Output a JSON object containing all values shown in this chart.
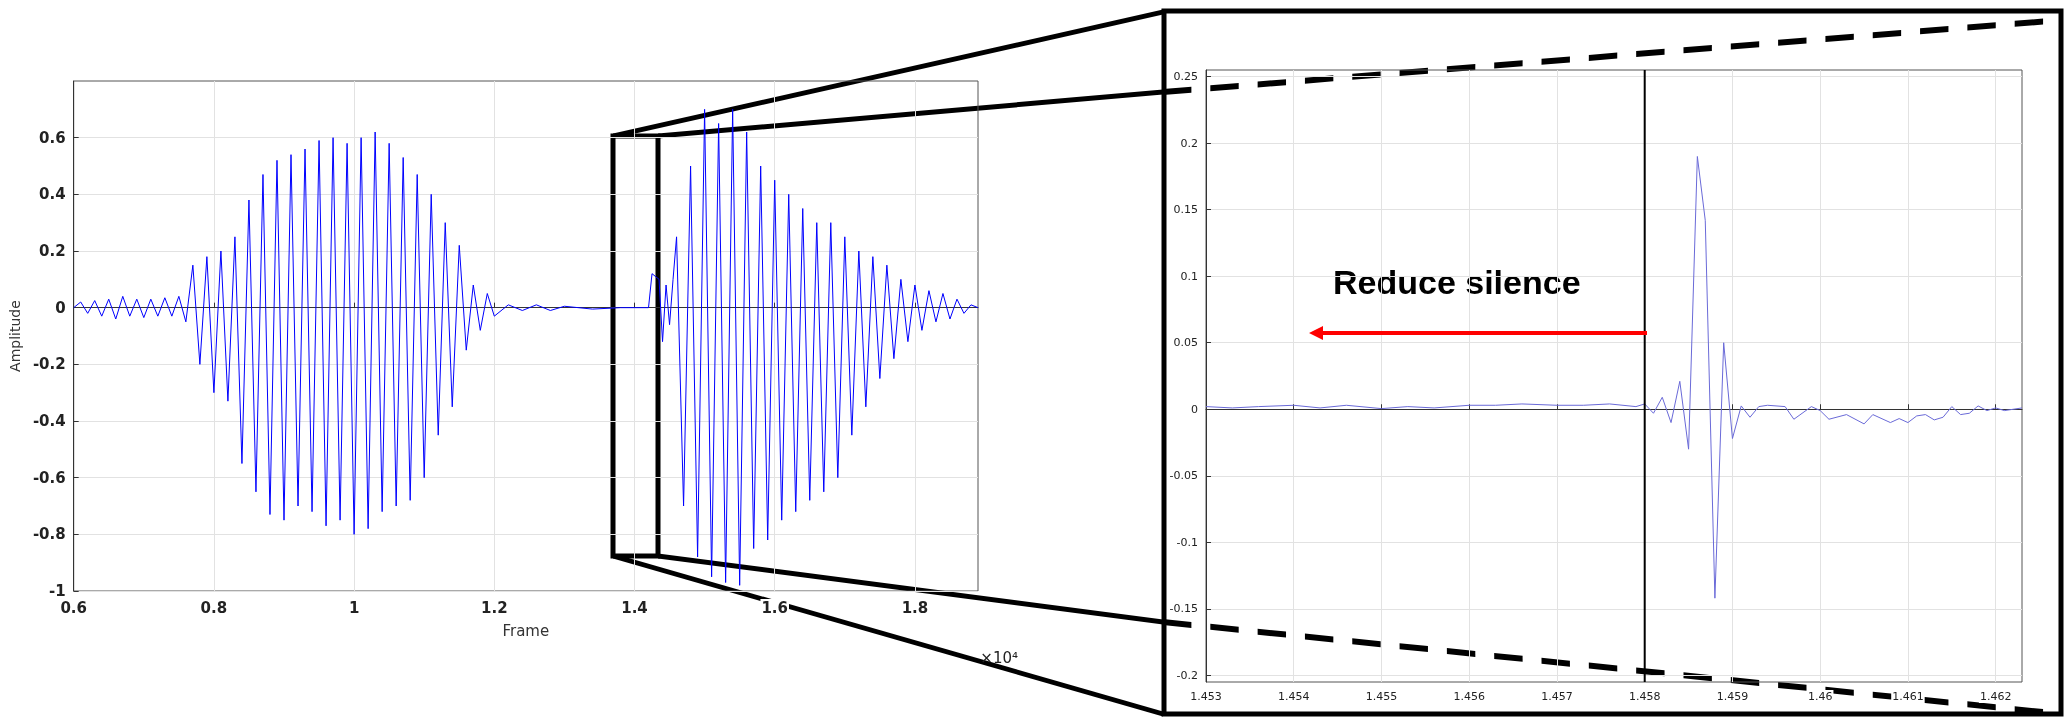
{
  "chart_data": [
    {
      "type": "line",
      "xlabel": "Frame",
      "ylabel": "Amplitude",
      "annotations": [
        "×10⁴"
      ],
      "xlim": [
        0.6,
        1.89
      ],
      "ylim": [
        -1,
        0.8
      ],
      "xticks": [
        0.6,
        0.8,
        1,
        1.2,
        1.4,
        1.6,
        1.8
      ],
      "yticks": [
        -1,
        -0.8,
        -0.6,
        -0.4,
        -0.2,
        0,
        0.2,
        0.4,
        0.6
      ],
      "grid": true,
      "series": [
        {
          "color": "#0000ff",
          "x": [
            0.6,
            0.61,
            0.62,
            0.63,
            0.64,
            0.65,
            0.66,
            0.67,
            0.68,
            0.69,
            0.7,
            0.71,
            0.72,
            0.73,
            0.74,
            0.75,
            0.76,
            0.77,
            0.78,
            0.79,
            0.8,
            0.81,
            0.82,
            0.83,
            0.84,
            0.85,
            0.86,
            0.87,
            0.88,
            0.89,
            0.9,
            0.91,
            0.92,
            0.93,
            0.94,
            0.95,
            0.96,
            0.97,
            0.98,
            0.99,
            1.0,
            1.01,
            1.02,
            1.03,
            1.04,
            1.05,
            1.06,
            1.07,
            1.08,
            1.09,
            1.1,
            1.11,
            1.12,
            1.13,
            1.14,
            1.15,
            1.16,
            1.17,
            1.18,
            1.19,
            1.2,
            1.22,
            1.24,
            1.26,
            1.28,
            1.3,
            1.34,
            1.38,
            1.42,
            1.425,
            1.435,
            1.44,
            1.445,
            1.45,
            1.455,
            1.46,
            1.47,
            1.48,
            1.49,
            1.5,
            1.51,
            1.52,
            1.53,
            1.54,
            1.55,
            1.56,
            1.57,
            1.58,
            1.59,
            1.6,
            1.61,
            1.62,
            1.63,
            1.64,
            1.65,
            1.66,
            1.67,
            1.68,
            1.69,
            1.7,
            1.71,
            1.72,
            1.73,
            1.74,
            1.75,
            1.76,
            1.77,
            1.78,
            1.79,
            1.8,
            1.81,
            1.82,
            1.83,
            1.84,
            1.85,
            1.86,
            1.87,
            1.88,
            1.89
          ],
          "values": [
            0,
            0.02,
            -0.02,
            0.025,
            -0.03,
            0.03,
            -0.04,
            0.04,
            -0.03,
            0.03,
            -0.035,
            0.03,
            -0.03,
            0.035,
            -0.03,
            0.04,
            -0.05,
            0.15,
            -0.2,
            0.18,
            -0.3,
            0.2,
            -0.33,
            0.25,
            -0.55,
            0.38,
            -0.65,
            0.47,
            -0.73,
            0.52,
            -0.75,
            0.54,
            -0.7,
            0.56,
            -0.72,
            0.59,
            -0.77,
            0.6,
            -0.75,
            0.58,
            -0.8,
            0.6,
            -0.78,
            0.62,
            -0.72,
            0.58,
            -0.7,
            0.53,
            -0.68,
            0.47,
            -0.6,
            0.4,
            -0.45,
            0.3,
            -0.35,
            0.22,
            -0.15,
            0.08,
            -0.08,
            0.05,
            -0.03,
            0.01,
            -0.01,
            0.01,
            -0.01,
            0.005,
            -0.005,
            0,
            0,
            0.12,
            0.1,
            -0.12,
            0.08,
            -0.06,
            0.1,
            0.25,
            -0.7,
            0.5,
            -0.88,
            0.7,
            -0.95,
            0.65,
            -0.97,
            0.7,
            -0.98,
            0.62,
            -0.85,
            0.5,
            -0.82,
            0.45,
            -0.75,
            0.4,
            -0.72,
            0.35,
            -0.68,
            0.3,
            -0.65,
            0.3,
            -0.6,
            0.25,
            -0.45,
            0.2,
            -0.35,
            0.18,
            -0.25,
            0.15,
            -0.18,
            0.1,
            -0.12,
            0.08,
            -0.08,
            0.06,
            -0.05,
            0.05,
            -0.04,
            0.03,
            -0.02,
            0.01,
            0
          ]
        }
      ]
    },
    {
      "type": "line",
      "annotations": [
        "Reduce silence"
      ],
      "xlim": [
        1.453,
        1.4623
      ],
      "ylim": [
        -0.205,
        0.255
      ],
      "xticks": [
        1.453,
        1.454,
        1.455,
        1.456,
        1.457,
        1.458,
        1.459,
        1.46,
        1.461,
        1.462
      ],
      "yticks": [
        -0.2,
        -0.15,
        -0.1,
        -0.05,
        0,
        0.05,
        0.1,
        0.15,
        0.2,
        0.25
      ],
      "grid": true,
      "ref_lines": [
        {
          "axis": "x",
          "value": 1.458,
          "color": "#000000"
        }
      ],
      "series": [
        {
          "color": "#6a6ad8",
          "x": [
            1.453,
            1.4533,
            1.4536,
            1.454,
            1.4543,
            1.4546,
            1.455,
            1.4553,
            1.4556,
            1.456,
            1.4563,
            1.4566,
            1.457,
            1.4573,
            1.4576,
            1.4579,
            1.458,
            1.4581,
            1.4582,
            1.4583,
            1.4584,
            1.4585,
            1.4586,
            1.45869,
            1.4588,
            1.4589,
            1.459,
            1.4591,
            1.4592,
            1.4593,
            1.4594,
            1.4596,
            1.4597,
            1.4599,
            1.46,
            1.4601,
            1.4603,
            1.4605,
            1.4606,
            1.4608,
            1.4609,
            1.461,
            1.4611,
            1.4612,
            1.4613,
            1.4614,
            1.4615,
            1.4616,
            1.4617,
            1.4618,
            1.4619,
            1.462,
            1.4621,
            1.4623
          ],
          "values": [
            0.002,
            0.001,
            0.002,
            0.003,
            0.001,
            0.003,
            0.0005,
            0.002,
            0.001,
            0.003,
            0.003,
            0.004,
            0.003,
            0.003,
            0.004,
            0.002,
            0.004,
            -0.003,
            0.009,
            -0.01,
            0.021,
            -0.03,
            0.19,
            0.142,
            -0.142,
            0.05,
            -0.022,
            0.0025,
            -0.006,
            0.002,
            0.003,
            0.002,
            -0.0075,
            0.002,
            -0.001,
            -0.0075,
            -0.004,
            -0.011,
            -0.004,
            -0.01,
            -0.007,
            -0.01,
            -0.005,
            -0.004,
            -0.008,
            -0.006,
            0.002,
            -0.004,
            -0.003,
            0.0025,
            -0.001,
            0.001,
            -0.001,
            0.001
          ]
        }
      ]
    }
  ]
}
